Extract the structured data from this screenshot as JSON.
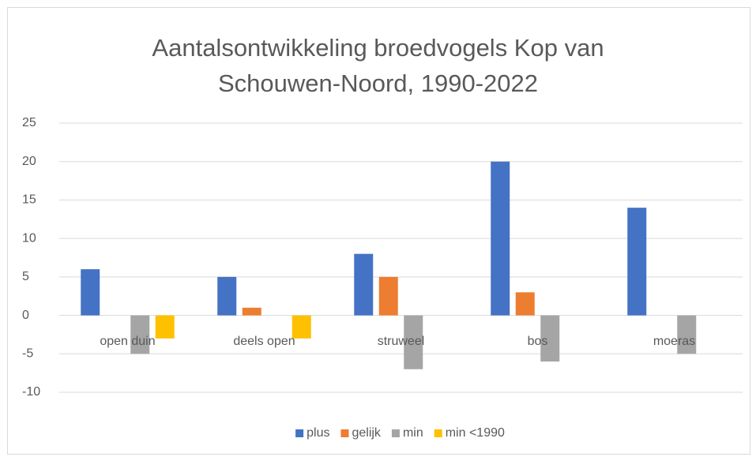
{
  "chart_data": {
    "type": "bar",
    "title": "Aantalsontwikkeling broedvogels Kop van Schouwen-Noord, 1990-2022",
    "categories": [
      "open duin",
      "deels open",
      "struweel",
      "bos",
      "moeras"
    ],
    "series": [
      {
        "name": "plus",
        "color": "#4472c4",
        "values": [
          6,
          5,
          8,
          20,
          14
        ]
      },
      {
        "name": "gelijk",
        "color": "#ed7d31",
        "values": [
          0,
          1,
          5,
          3,
          0
        ]
      },
      {
        "name": "min",
        "color": "#a5a5a5",
        "values": [
          -5,
          0,
          -7,
          -6,
          -5
        ]
      },
      {
        "name": "min <1990",
        "color": "#ffc000",
        "values": [
          -3,
          -3,
          0,
          0,
          0
        ]
      }
    ],
    "ylim": [
      -10,
      25
    ],
    "yticks": [
      -10,
      -5,
      0,
      5,
      10,
      15,
      20,
      25
    ],
    "grid": true,
    "legend": "bottom"
  }
}
